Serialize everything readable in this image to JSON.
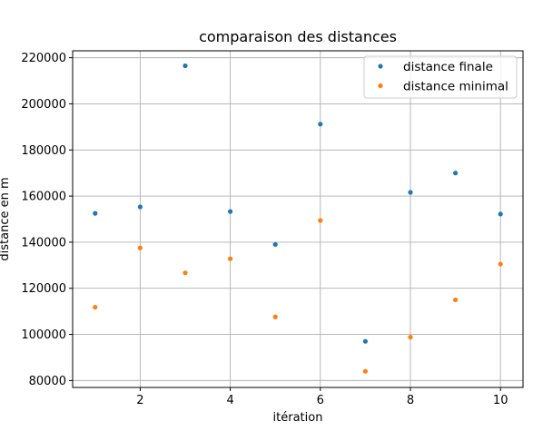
{
  "chart_data": {
    "type": "scatter",
    "title": "comparaison des distances",
    "xlabel": "itération",
    "ylabel": "distance en m",
    "xlim": [
      0.5,
      10.5
    ],
    "ylim": [
      77000,
      223000
    ],
    "xticks": [
      2,
      4,
      6,
      8,
      10
    ],
    "yticks": [
      80000,
      100000,
      120000,
      140000,
      160000,
      180000,
      200000,
      220000
    ],
    "grid": true,
    "legend_position": "top-right",
    "series": [
      {
        "name": "distance finale",
        "color": "#1f77b4",
        "x": [
          1,
          2,
          3,
          4,
          5,
          6,
          7,
          8,
          9,
          10
        ],
        "y": [
          152500,
          155300,
          216500,
          153300,
          139000,
          191200,
          97000,
          161600,
          170000,
          152200
        ]
      },
      {
        "name": "distance minimal",
        "color": "#ff7f0e",
        "x": [
          1,
          2,
          3,
          4,
          5,
          6,
          7,
          8,
          9,
          10
        ],
        "y": [
          111800,
          137500,
          126700,
          132800,
          107600,
          149400,
          84000,
          98800,
          115000,
          130500
        ]
      }
    ]
  }
}
